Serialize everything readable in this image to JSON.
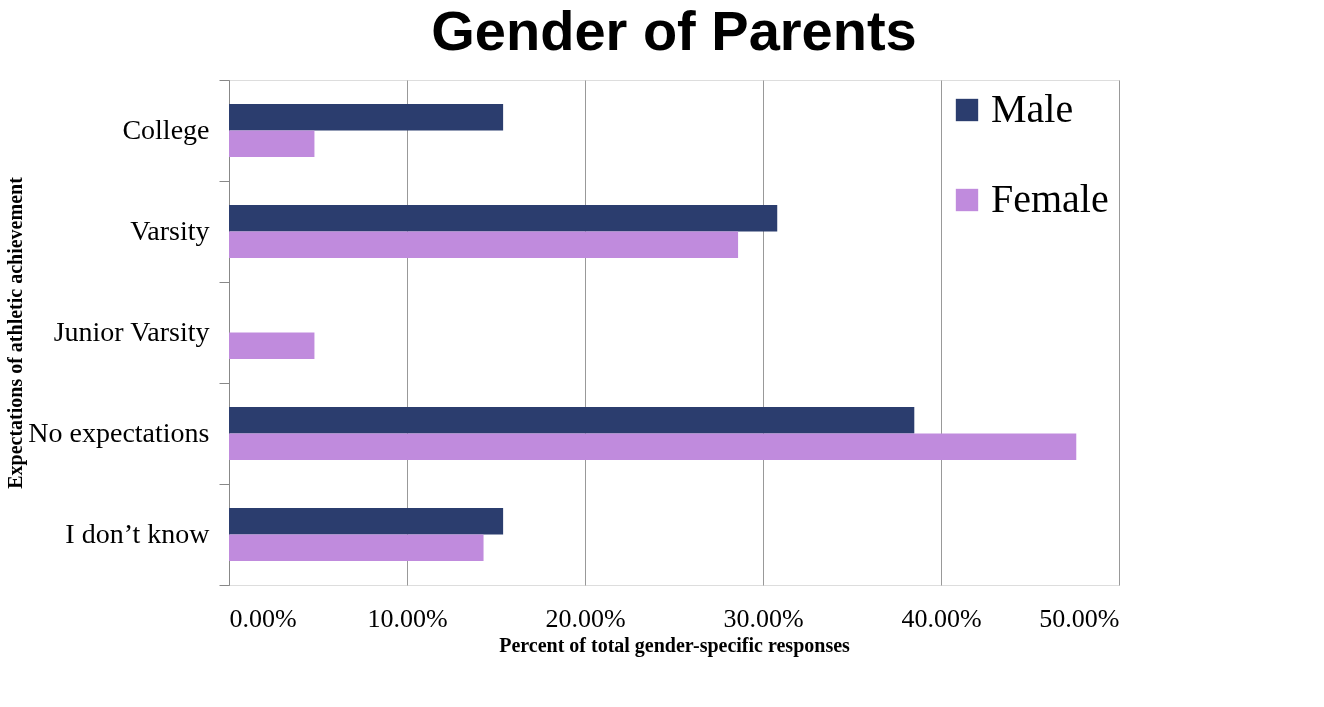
{
  "chart_data": {
    "type": "bar",
    "orientation": "horizontal",
    "title": "Gender of Parents",
    "xlabel": "Percent of total gender-specific responses",
    "ylabel": "Expectations of athletic achievement",
    "categories": [
      "College",
      "Varsity",
      "Junior Varsity",
      "No expectations",
      "I don’t know"
    ],
    "series": [
      {
        "name": "Male",
        "color": "#2b3d6e",
        "values": [
          15.4,
          30.8,
          0,
          38.5,
          15.4
        ]
      },
      {
        "name": "Female",
        "color": "#c08bdd",
        "values": [
          4.8,
          28.6,
          4.8,
          47.6,
          14.3
        ]
      }
    ],
    "xlim": [
      0,
      50
    ],
    "xticks": [
      {
        "value": 0,
        "label": "0.00%"
      },
      {
        "value": 10,
        "label": "10.00%"
      },
      {
        "value": 20,
        "label": "20.00%"
      },
      {
        "value": 30,
        "label": "30.00%"
      },
      {
        "value": 40,
        "label": "40.00%"
      },
      {
        "value": 50,
        "label": "50.00%"
      }
    ],
    "grid": "x",
    "legend": "top right"
  }
}
